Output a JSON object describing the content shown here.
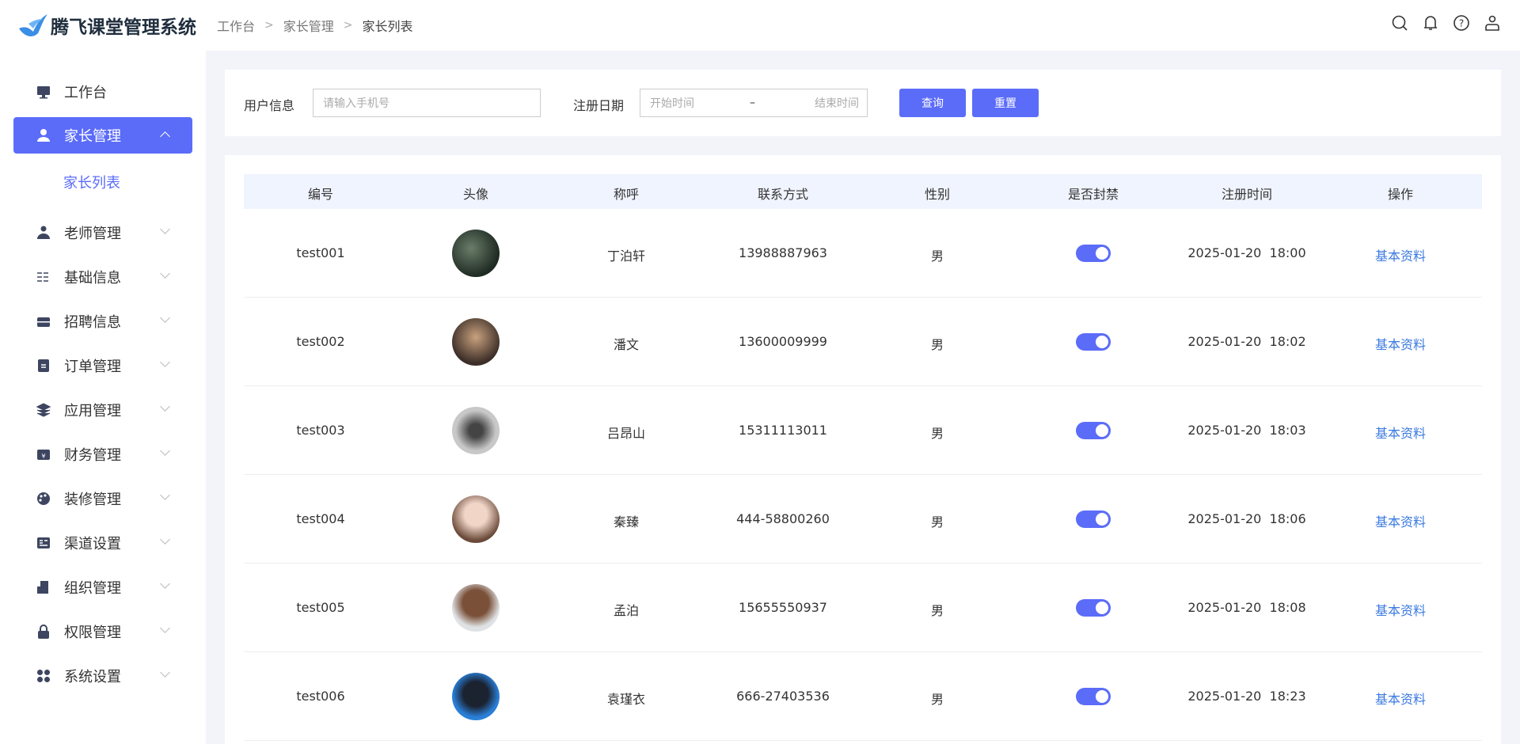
{
  "app": {
    "title": "腾飞课堂管理系统",
    "accent": "#5b6cf9"
  },
  "breadcrumb": [
    "工作台",
    "家长管理",
    "家长列表"
  ],
  "header_icons": [
    "search-icon",
    "bell-icon",
    "help-icon",
    "user-icon"
  ],
  "sidebar": {
    "items": [
      {
        "label": "工作台",
        "icon": "dashboard-icon"
      },
      {
        "label": "家长管理",
        "icon": "user-icon",
        "active": true,
        "expanded": true
      },
      {
        "label": "老师管理",
        "icon": "teacher-icon"
      },
      {
        "label": "基础信息",
        "icon": "sliders-icon"
      },
      {
        "label": "招聘信息",
        "icon": "briefcase-icon"
      },
      {
        "label": "订单管理",
        "icon": "order-icon"
      },
      {
        "label": "应用管理",
        "icon": "layers-icon"
      },
      {
        "label": "财务管理",
        "icon": "wallet-icon"
      },
      {
        "label": "装修管理",
        "icon": "palette-icon"
      },
      {
        "label": "渠道设置",
        "icon": "channel-icon"
      },
      {
        "label": "组织管理",
        "icon": "building-icon"
      },
      {
        "label": "权限管理",
        "icon": "lock-icon"
      },
      {
        "label": "系统设置",
        "icon": "grid-icon"
      }
    ],
    "sub_item": "家长列表"
  },
  "filter": {
    "user_label": "用户信息",
    "user_placeholder": "请输入手机号",
    "date_label": "注册日期",
    "start_placeholder": "开始时间",
    "range_sep": "–",
    "end_placeholder": "结束时间",
    "search_button": "查询",
    "reset_button": "重置"
  },
  "table": {
    "columns": [
      "编号",
      "头像",
      "称呼",
      "联系方式",
      "性别",
      "是否封禁",
      "注册时间",
      "操作"
    ],
    "rows": [
      {
        "id": "test001",
        "name": "丁泊轩",
        "phone": "13988887963",
        "gender": "男",
        "banned": true,
        "time": "2025-01-20  18:00",
        "action": "基本资料"
      },
      {
        "id": "test002",
        "name": "潘文",
        "phone": "13600009999",
        "gender": "男",
        "banned": true,
        "time": "2025-01-20  18:02",
        "action": "基本资料"
      },
      {
        "id": "test003",
        "name": "吕昂山",
        "phone": "15311113011",
        "gender": "男",
        "banned": true,
        "time": "2025-01-20  18:03",
        "action": "基本资料"
      },
      {
        "id": "test004",
        "name": "秦臻",
        "phone": "444-58800260",
        "gender": "男",
        "banned": true,
        "time": "2025-01-20  18:06",
        "action": "基本资料"
      },
      {
        "id": "test005",
        "name": "孟泊",
        "phone": "15655550937",
        "gender": "男",
        "banned": true,
        "time": "2025-01-20  18:08",
        "action": "基本资料"
      },
      {
        "id": "test006",
        "name": "袁瑾衣",
        "phone": "666-27403536",
        "gender": "男",
        "banned": true,
        "time": "2025-01-20  18:23",
        "action": "基本资料"
      }
    ]
  }
}
